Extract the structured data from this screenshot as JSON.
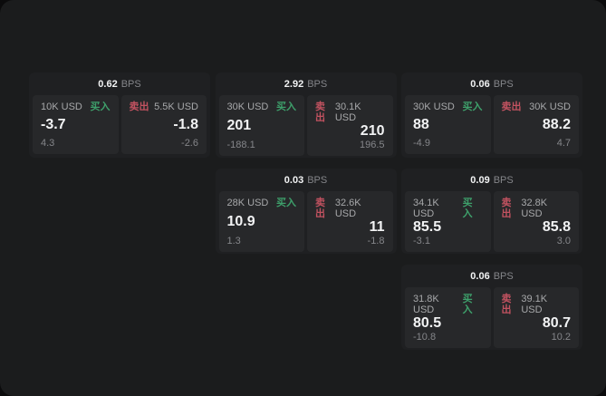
{
  "colors": {
    "page_bg": "#0b0b0c",
    "container_bg": "#1b1c1d",
    "card_bg": "#1f2022",
    "panel_bg": "#27282a",
    "text_primary": "#f2f3f4",
    "text_secondary": "#a7a8aa",
    "text_dim": "#85868a",
    "buy_green": "#3ea06b",
    "sell_red": "#c25260"
  },
  "labels": {
    "bps_suffix": "BPS",
    "buy": "买入",
    "sell": "卖出"
  },
  "cards": [
    {
      "row": 1,
      "col": 1,
      "bps": "0.62",
      "buy": {
        "amount": "10K USD",
        "value": "-3.7",
        "delta": "4.3"
      },
      "sell": {
        "amount": "5.5K USD",
        "value": "-1.8",
        "delta": "-2.6"
      }
    },
    {
      "row": 1,
      "col": 2,
      "bps": "2.92",
      "buy": {
        "amount": "30K USD",
        "value": "201",
        "delta": "-188.1"
      },
      "sell": {
        "amount": "30.1K USD",
        "value": "210",
        "delta": "196.5"
      }
    },
    {
      "row": 1,
      "col": 3,
      "bps": "0.06",
      "buy": {
        "amount": "30K USD",
        "value": "88",
        "delta": "-4.9"
      },
      "sell": {
        "amount": "30K USD",
        "value": "88.2",
        "delta": "4.7"
      }
    },
    {
      "row": 2,
      "col": 2,
      "bps": "0.03",
      "buy": {
        "amount": "28K USD",
        "value": "10.9",
        "delta": "1.3"
      },
      "sell": {
        "amount": "32.6K USD",
        "value": "11",
        "delta": "-1.8"
      }
    },
    {
      "row": 2,
      "col": 3,
      "bps": "0.09",
      "buy": {
        "amount": "34.1K USD",
        "value": "85.5",
        "delta": "-3.1"
      },
      "sell": {
        "amount": "32.8K USD",
        "value": "85.8",
        "delta": "3.0"
      }
    },
    {
      "row": 3,
      "col": 3,
      "bps": "0.06",
      "buy": {
        "amount": "31.8K USD",
        "value": "80.5",
        "delta": "-10.8"
      },
      "sell": {
        "amount": "39.1K USD",
        "value": "80.7",
        "delta": "10.2"
      }
    }
  ]
}
